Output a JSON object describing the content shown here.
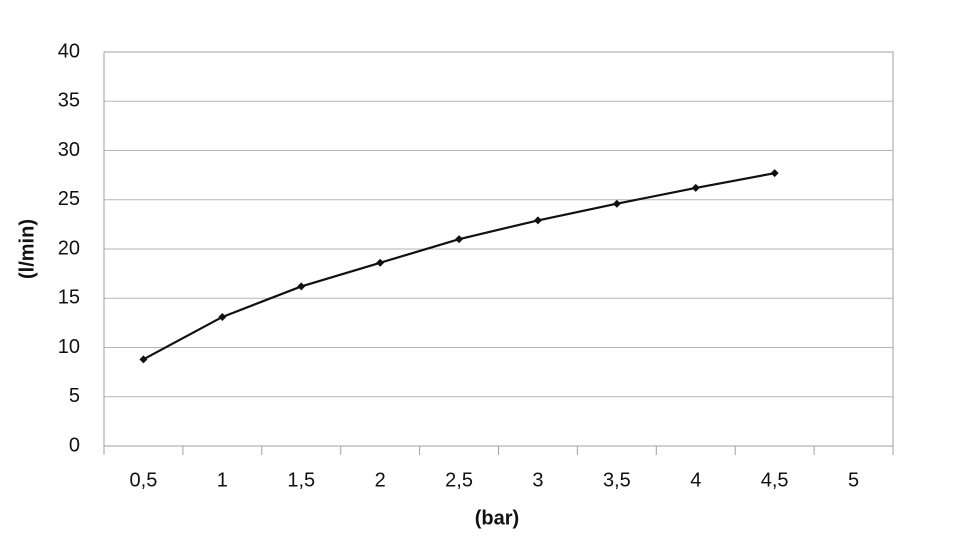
{
  "chart_data": {
    "type": "line",
    "xlabel": "(bar)",
    "ylabel": "(l/min)",
    "categories": [
      "0,5",
      "1",
      "1,5",
      "2",
      "2,5",
      "3",
      "3,5",
      "4",
      "4,5",
      "5"
    ],
    "values": [
      8.8,
      13.1,
      16.2,
      18.6,
      21.0,
      22.9,
      24.6,
      26.2,
      27.7,
      null
    ],
    "color": "#111111",
    "ylim": [
      0,
      40
    ],
    "yticks": [
      0,
      5,
      10,
      15,
      20,
      25,
      30,
      35,
      40
    ],
    "grid": true
  }
}
